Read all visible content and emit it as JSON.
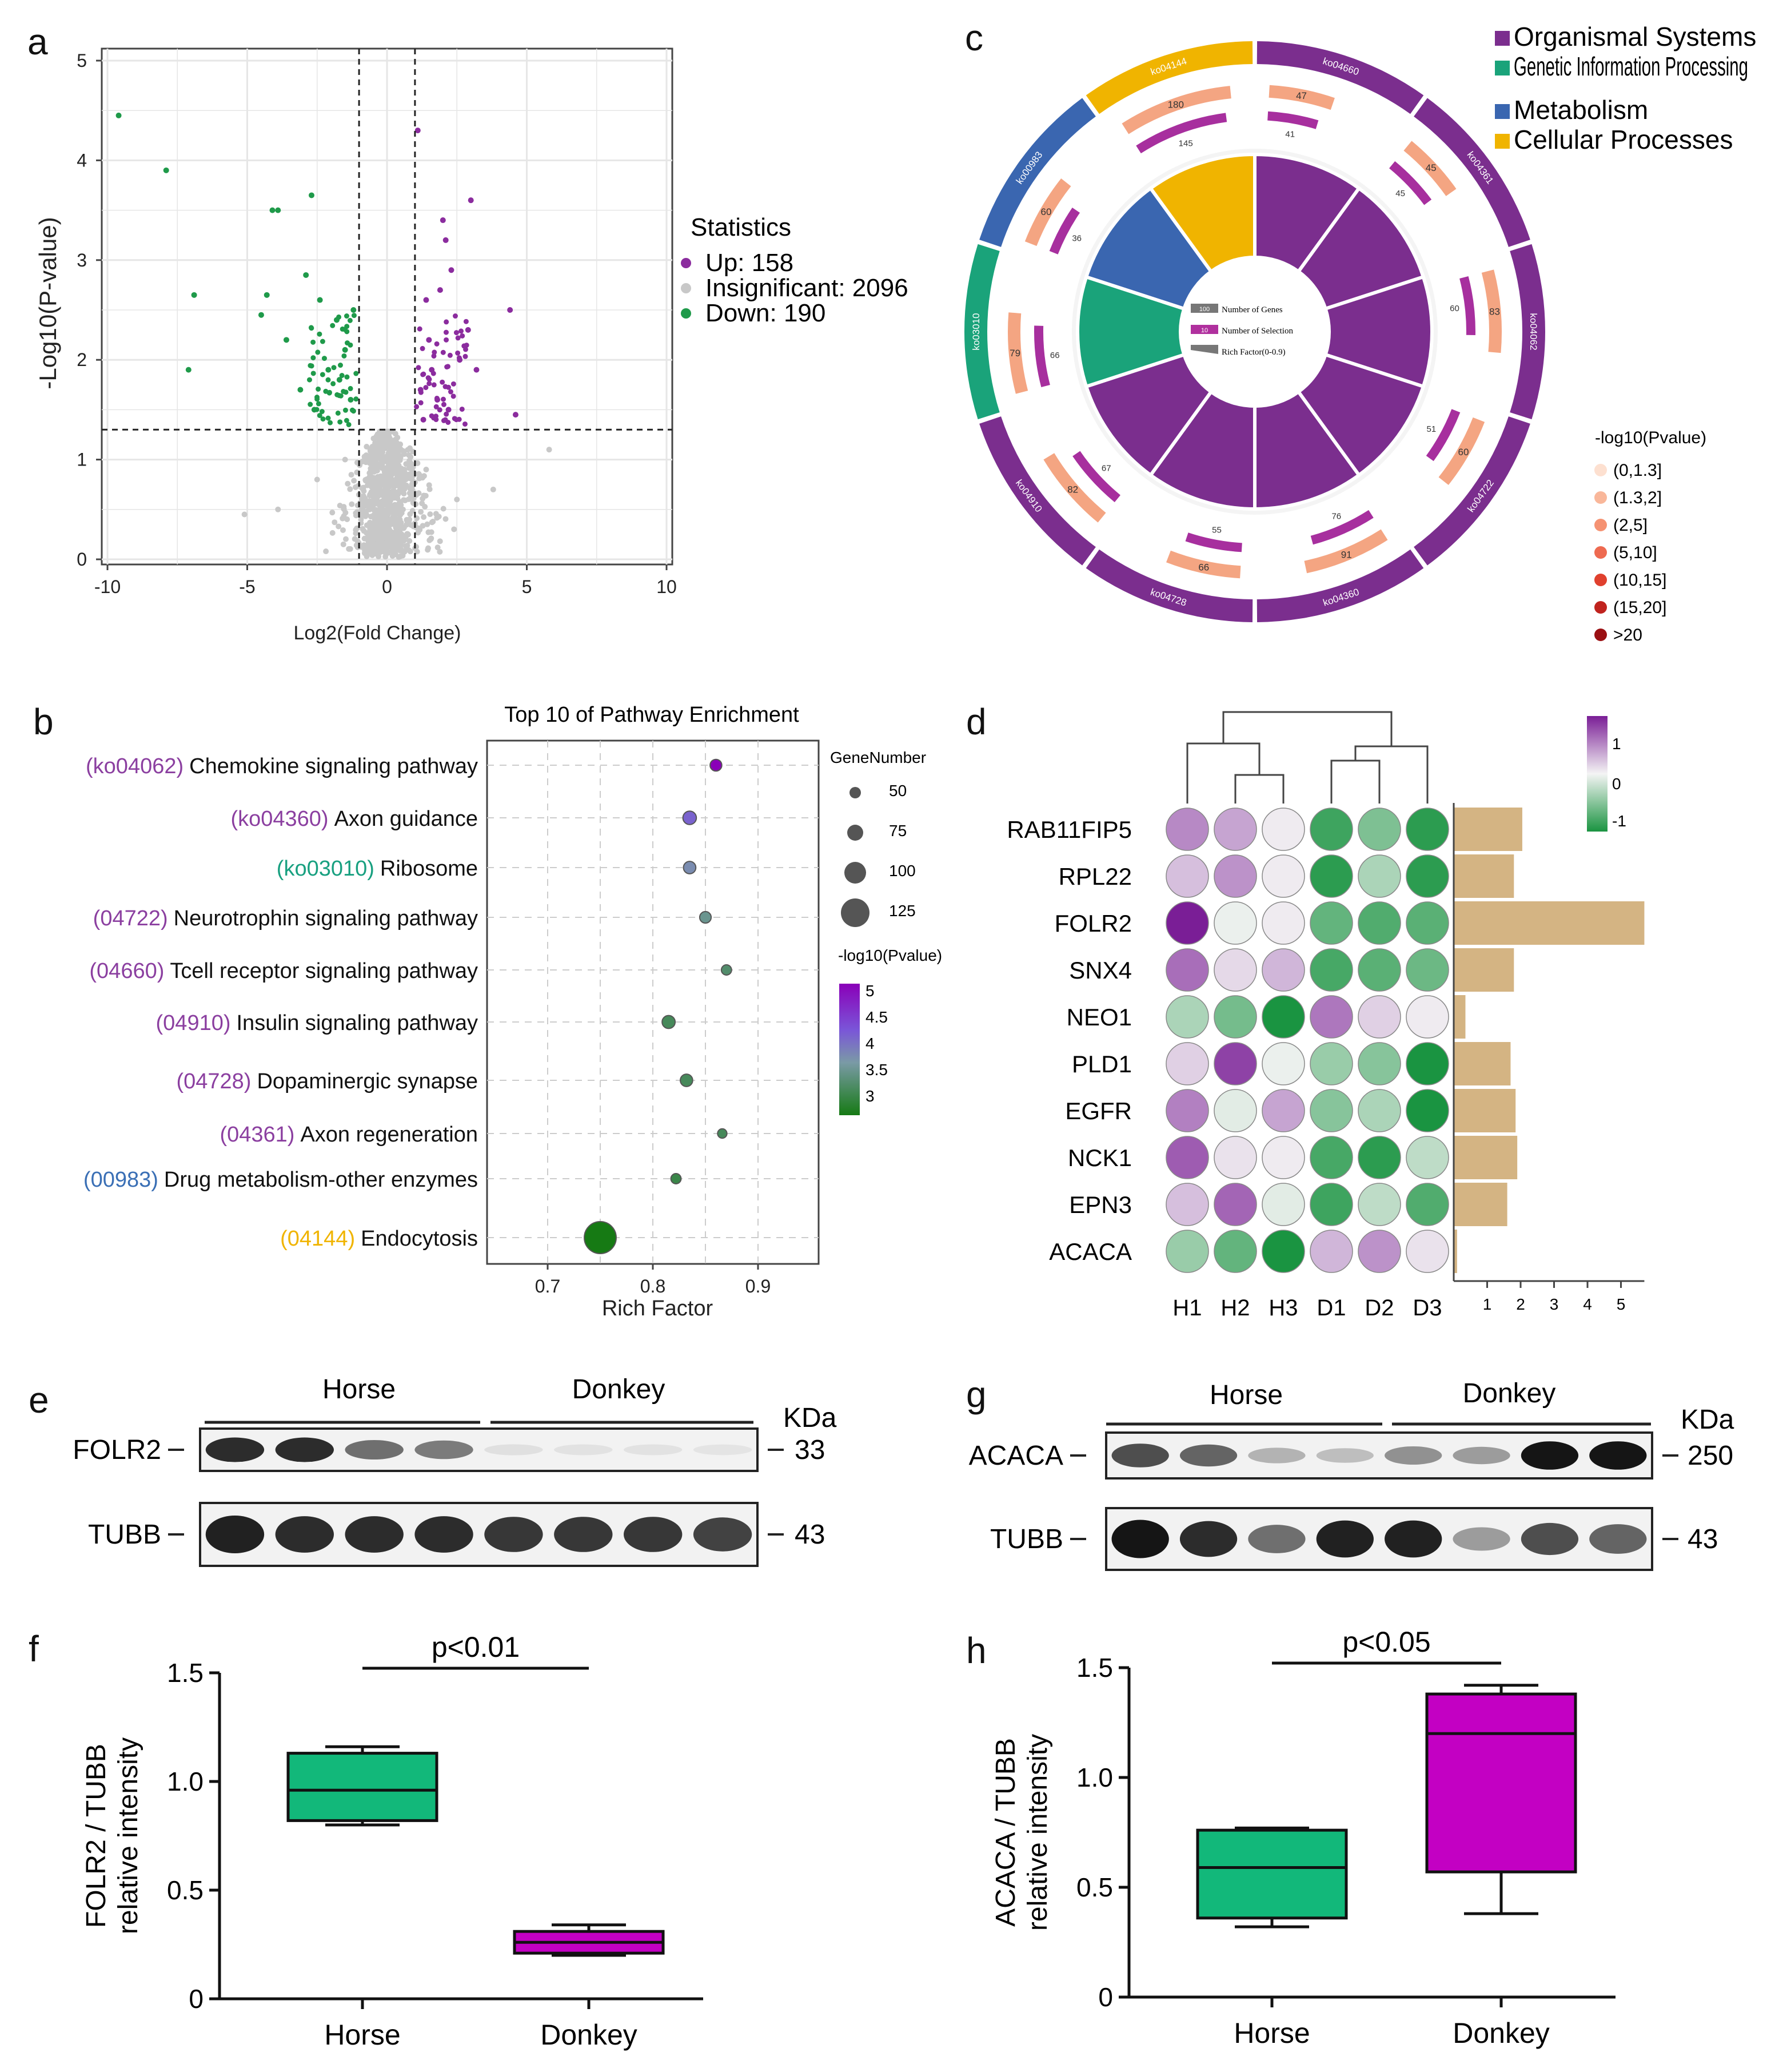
{
  "colors": {
    "up": "#8b2c9e",
    "down": "#1f9a4a",
    "insig": "#c8c8c8",
    "organismal": "#7b2e8e",
    "genetic": "#1aa37a",
    "metabolism": "#3a66b0",
    "cellular": "#f0b400",
    "bar_sand": "#d4b483",
    "box_green": "#12b87a",
    "box_magenta": "#c300c3",
    "sel_orange": "#f4a582"
  },
  "panel_labels": [
    "a",
    "b",
    "c",
    "d",
    "e",
    "f",
    "g",
    "h"
  ],
  "chart_data": [
    {
      "panel": "a",
      "type": "scatter",
      "title": "",
      "xlabel": "Log2(Fold Change)",
      "ylabel": "-Log10(P-value)",
      "xlim": [
        -10,
        10
      ],
      "ylim": [
        0,
        5
      ],
      "xticks": [
        "-10",
        "-5",
        "0",
        "5",
        "10"
      ],
      "yticks": [
        "0",
        "1",
        "2",
        "3",
        "4",
        "5"
      ],
      "thresholds": {
        "x": [
          -1,
          1
        ],
        "y": 1.3
      },
      "legend": {
        "title": "Statistics",
        "entries": [
          "Up: 158",
          "Insignificant: 2096",
          "Down: 190"
        ]
      },
      "series": [
        {
          "name": "Up",
          "points": [
            [
              1.1,
              4.3
            ],
            [
              2.0,
              3.4
            ],
            [
              3.0,
              3.6
            ],
            [
              2.1,
              3.2
            ],
            [
              4.4,
              2.5
            ],
            [
              1.4,
              2.6
            ],
            [
              2.3,
              2.9
            ],
            [
              1.5,
              2.2
            ],
            [
              2.6,
              2.0
            ],
            [
              3.2,
              1.9
            ],
            [
              1.2,
              1.7
            ],
            [
              1.8,
              1.6
            ],
            [
              2.2,
              1.5
            ],
            [
              4.6,
              1.45
            ],
            [
              1.3,
              1.4
            ],
            [
              1.6,
              1.9
            ],
            [
              2.9,
              2.3
            ],
            [
              1.9,
              2.7
            ]
          ]
        },
        {
          "name": "Down",
          "points": [
            [
              -9.6,
              4.45
            ],
            [
              -7.9,
              3.9
            ],
            [
              -4.1,
              3.5
            ],
            [
              -3.9,
              3.5
            ],
            [
              -2.7,
              3.65
            ],
            [
              -6.9,
              2.65
            ],
            [
              -4.3,
              2.65
            ],
            [
              -4.5,
              2.45
            ],
            [
              -7.1,
              1.9
            ],
            [
              -2.9,
              2.85
            ],
            [
              -2.4,
              2.6
            ],
            [
              -3.6,
              2.2
            ],
            [
              -1.8,
              2.4
            ],
            [
              -2.1,
              1.9
            ],
            [
              -1.5,
              2.1
            ],
            [
              -3.1,
              1.7
            ],
            [
              -1.3,
              1.6
            ],
            [
              -2.6,
              1.5
            ],
            [
              -1.7,
              1.8
            ],
            [
              -1.2,
              2.5
            ]
          ]
        },
        {
          "name": "Insignificant",
          "points": [
            [
              -0.3,
              0.3
            ],
            [
              0.2,
              0.5
            ],
            [
              0.5,
              0.8
            ],
            [
              -0.6,
              1.1
            ],
            [
              0.8,
              0.4
            ],
            [
              -0.9,
              0.6
            ],
            [
              1.4,
              0.9
            ],
            [
              -1.5,
              1.0
            ],
            [
              2.5,
              0.6
            ],
            [
              -2.5,
              0.8
            ],
            [
              3.8,
              0.7
            ],
            [
              -3.9,
              0.5
            ],
            [
              -5.1,
              0.45
            ],
            [
              5.8,
              1.1
            ],
            [
              -0.1,
              0.1
            ],
            [
              0.0,
              0.2
            ],
            [
              0.3,
              1.2
            ],
            [
              -0.4,
              0.9
            ]
          ]
        }
      ]
    },
    {
      "panel": "b",
      "type": "scatter",
      "title": "Top 10 of Pathway Enrichment",
      "xlabel": "Rich Factor",
      "ylabel": "",
      "xlim": [
        0.65,
        0.95
      ],
      "xticks": [
        "0.7",
        "0.8",
        "0.9"
      ],
      "categories": [
        {
          "code": "(ko04062)",
          "name": "Chemokine signaling pathway",
          "group": "organismal"
        },
        {
          "code": "(ko04360)",
          "name": "Axon guidance",
          "group": "organismal"
        },
        {
          "code": "(ko03010)",
          "name": "Ribosome",
          "group": "genetic"
        },
        {
          "code": "(04722)",
          "name": "Neurotrophin signaling pathway",
          "group": "organismal"
        },
        {
          "code": "(04660)",
          "name": "Tcell receptor signaling pathway",
          "group": "organismal"
        },
        {
          "code": "(04910)",
          "name": "Insulin signaling pathway",
          "group": "organismal"
        },
        {
          "code": "(04728)",
          "name": "Dopaminergic synapse",
          "group": "organismal"
        },
        {
          "code": "(04361)",
          "name": "Axon regeneration",
          "group": "organismal"
        },
        {
          "code": "(00983)",
          "name": "Drug metabolism-other enzymes",
          "group": "metabolism"
        },
        {
          "code": "(04144)",
          "name": "Endocytosis",
          "group": "cellular"
        }
      ],
      "rich_factor": [
        0.86,
        0.835,
        0.835,
        0.85,
        0.87,
        0.815,
        0.832,
        0.866,
        0.822,
        0.75
      ],
      "gene_number": [
        52,
        60,
        55,
        51,
        45,
        58,
        55,
        41,
        45,
        145
      ],
      "neg_log10_p": [
        5.0,
        4.0,
        3.5,
        3.2,
        3.0,
        2.9,
        2.9,
        2.9,
        2.8,
        2.5
      ],
      "size_legend": {
        "title": "GeneNumber",
        "values": [
          "50",
          "75",
          "100",
          "125"
        ]
      },
      "color_legend": {
        "title": "-log10(Pvalue)",
        "ticks": [
          "5",
          "4.5",
          "4",
          "3.5",
          "3"
        ]
      }
    },
    {
      "panel": "c",
      "type": "pie",
      "title": "",
      "pathways": [
        {
          "id": "ko04660",
          "group": "organismal",
          "genes": 47,
          "selection": 41
        },
        {
          "id": "ko04361",
          "group": "organismal",
          "genes": 45,
          "selection": 45
        },
        {
          "id": "ko04062",
          "group": "organismal",
          "genes": 83,
          "selection": 60
        },
        {
          "id": "ko04722",
          "group": "organismal",
          "genes": 60,
          "selection": 51
        },
        {
          "id": "ko04360",
          "group": "organismal",
          "genes": 91,
          "selection": 76
        },
        {
          "id": "ko04728",
          "group": "organismal",
          "genes": 66,
          "selection": 55
        },
        {
          "id": "ko04910",
          "group": "organismal",
          "genes": 82,
          "selection": 67
        },
        {
          "id": "ko03010",
          "group": "genetic",
          "genes": 79,
          "selection": 66
        },
        {
          "id": "ko00983",
          "group": "metabolism",
          "genes": 60,
          "selection": 36
        },
        {
          "id": "ko04144",
          "group": "cellular",
          "genes": 180,
          "selection": 145
        }
      ],
      "inner_legend": [
        "Number of Genes",
        "Number of Selection",
        "Rich Factor(0-0.9)"
      ],
      "inner_legend_samples": [
        "100",
        "10"
      ],
      "category_legend": [
        "Organismal Systems",
        "Genetic Information Processing",
        "Metabolism",
        "Cellular Processes"
      ],
      "pvalue_legend": {
        "title": "-log10(Pvalue)",
        "bins": [
          "(0,1.3]",
          "(1.3,2]",
          "(2,5]",
          "(5,10]",
          "(10,15]",
          "(15,20]",
          ">20"
        ],
        "colors": [
          "#fde0d0",
          "#f9b79a",
          "#f59272",
          "#ee6a50",
          "#e0402e",
          "#c0231e",
          "#9a0f12"
        ]
      }
    },
    {
      "panel": "d",
      "type": "heatmap",
      "rows": [
        "RAB11FIP5",
        "RPL22",
        "FOLR2",
        "SNX4",
        "NEO1",
        "PLD1",
        "EGFR",
        "NCK1",
        "EPN3",
        "ACACA"
      ],
      "columns": [
        "H1",
        "H2",
        "H3",
        "D1",
        "D2",
        "D3"
      ],
      "values": [
        [
          0.6,
          0.45,
          0.05,
          -1.0,
          -0.65,
          -1.1
        ],
        [
          0.3,
          0.55,
          0.05,
          -1.1,
          -0.4,
          -1.1
        ],
        [
          1.2,
          -0.05,
          0.05,
          -0.8,
          -0.9,
          -0.85
        ],
        [
          0.75,
          0.15,
          0.35,
          -0.95,
          -0.85,
          -0.75
        ],
        [
          -0.4,
          -0.7,
          -1.4,
          0.7,
          0.2,
          0.05
        ],
        [
          0.2,
          1.0,
          -0.05,
          -0.5,
          -0.6,
          -1.2
        ],
        [
          0.65,
          -0.1,
          0.45,
          -0.6,
          -0.4,
          -1.2
        ],
        [
          0.85,
          0.1,
          0.05,
          -0.95,
          -1.1,
          -0.3
        ],
        [
          0.3,
          0.8,
          -0.1,
          -1.0,
          -0.3,
          -0.9
        ],
        [
          -0.5,
          -0.8,
          -1.3,
          0.35,
          0.55,
          0.1
        ]
      ],
      "colorbar": {
        "ticks": [
          "1",
          "0",
          "-1"
        ],
        "range": [
          -1.2,
          1.2
        ]
      },
      "row_bars": [
        2.05,
        1.8,
        5.7,
        1.8,
        0.35,
        1.7,
        1.85,
        1.9,
        1.6,
        0.1
      ],
      "bar_axis_ticks": [
        "1",
        "2",
        "3",
        "4",
        "5"
      ]
    },
    {
      "panel": "f",
      "type": "box",
      "title": "p<0.01",
      "ylabel": "FOLR2 / TUBB relative intensity",
      "ylim": [
        0,
        1.5
      ],
      "yticks": [
        "0",
        "0.5",
        "1.0",
        "1.5"
      ],
      "categories": [
        "Horse",
        "Donkey"
      ],
      "series": [
        {
          "name": "Horse",
          "min": 0.8,
          "q1": 0.82,
          "median": 0.96,
          "q3": 1.13,
          "max": 1.16,
          "color": "#12b87a"
        },
        {
          "name": "Donkey",
          "min": 0.2,
          "q1": 0.21,
          "median": 0.26,
          "q3": 0.31,
          "max": 0.34,
          "color": "#c300c3"
        }
      ]
    },
    {
      "panel": "h",
      "type": "box",
      "title": "p<0.05",
      "ylabel": "ACACA / TUBB relative intensity",
      "ylim": [
        0,
        1.5
      ],
      "yticks": [
        "0",
        "0.5",
        "1.0",
        "1.5"
      ],
      "categories": [
        "Horse",
        "Donkey"
      ],
      "series": [
        {
          "name": "Horse",
          "min": 0.32,
          "q1": 0.36,
          "median": 0.59,
          "q3": 0.76,
          "max": 0.77,
          "color": "#12b87a"
        },
        {
          "name": "Donkey",
          "min": 0.38,
          "q1": 0.57,
          "median": 1.2,
          "q3": 1.38,
          "max": 1.42,
          "color": "#c300c3"
        }
      ]
    }
  ],
  "blots": {
    "e": {
      "groups": [
        "Horse",
        "Donkey"
      ],
      "unit": "KDa",
      "bands": [
        {
          "protein": "FOLR2",
          "kda": "33",
          "intensity": [
            0.85,
            0.85,
            0.55,
            0.5,
            0.05,
            0.04,
            0.04,
            0.03
          ]
        },
        {
          "protein": "TUBB",
          "kda": "43",
          "intensity": [
            0.9,
            0.85,
            0.85,
            0.85,
            0.8,
            0.8,
            0.8,
            0.75
          ]
        }
      ]
    },
    "g": {
      "groups": [
        "Horse",
        "Donkey"
      ],
      "unit": "KDa",
      "bands": [
        {
          "protein": "ACACA",
          "kda": "250",
          "intensity": [
            0.7,
            0.6,
            0.25,
            0.2,
            0.4,
            0.35,
            0.95,
            0.95
          ]
        },
        {
          "protein": "TUBB",
          "kda": "43",
          "intensity": [
            0.95,
            0.85,
            0.55,
            0.9,
            0.9,
            0.35,
            0.7,
            0.6
          ]
        }
      ]
    }
  }
}
